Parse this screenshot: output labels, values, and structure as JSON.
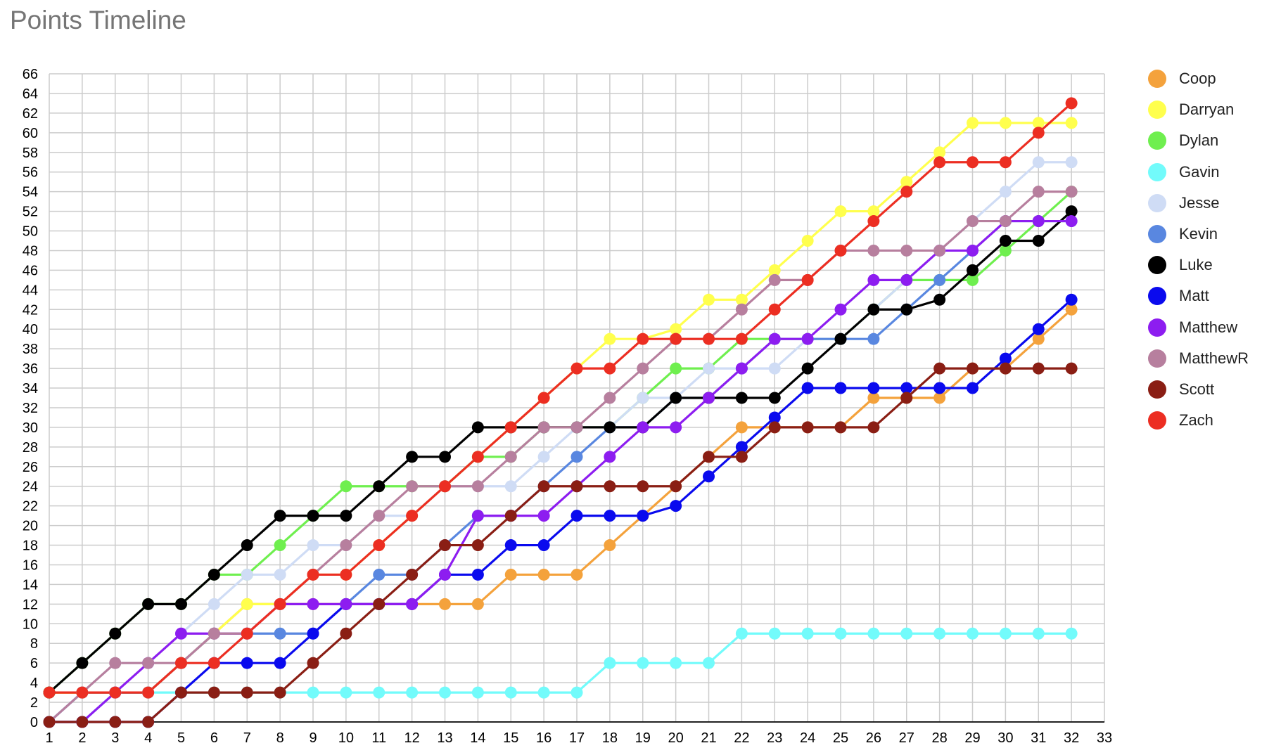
{
  "chart_data": {
    "type": "line",
    "title": "Points Timeline",
    "xlabel": "",
    "ylabel": "",
    "x": [
      1,
      2,
      3,
      4,
      5,
      6,
      7,
      8,
      9,
      10,
      11,
      12,
      13,
      14,
      15,
      16,
      17,
      18,
      19,
      20,
      21,
      22,
      23,
      24,
      25,
      26,
      27,
      28,
      29,
      30,
      31,
      32
    ],
    "xlim": [
      1,
      33
    ],
    "ylim": [
      0,
      66
    ],
    "x_ticks": [
      1,
      2,
      3,
      4,
      5,
      6,
      7,
      8,
      9,
      10,
      11,
      12,
      13,
      14,
      15,
      16,
      17,
      18,
      19,
      20,
      21,
      22,
      23,
      24,
      25,
      26,
      27,
      28,
      29,
      30,
      31,
      32,
      33
    ],
    "y_ticks": [
      0,
      2,
      4,
      6,
      8,
      10,
      12,
      14,
      16,
      18,
      20,
      22,
      24,
      26,
      28,
      30,
      32,
      34,
      36,
      38,
      40,
      42,
      44,
      46,
      48,
      50,
      52,
      54,
      56,
      58,
      60,
      62,
      64,
      66
    ],
    "grid": true,
    "legend_position": "right",
    "series": [
      {
        "name": "Coop",
        "color": "#f4a23c",
        "values": [
          3,
          3,
          3,
          3,
          6,
          9,
          12,
          12,
          12,
          12,
          12,
          12,
          12,
          12,
          15,
          15,
          15,
          18,
          21,
          24,
          27,
          30,
          30,
          30,
          30,
          33,
          33,
          33,
          36,
          36,
          39,
          42
        ]
      },
      {
        "name": "Darryan",
        "color": "#ffff4d",
        "values": [
          3,
          3,
          3,
          3,
          6,
          9,
          12,
          12,
          15,
          15,
          18,
          21,
          24,
          27,
          30,
          33,
          36,
          39,
          39,
          40,
          43,
          43,
          46,
          49,
          52,
          52,
          55,
          58,
          61,
          61,
          61,
          61
        ]
      },
      {
        "name": "Dylan",
        "color": "#6fef4f",
        "values": [
          3,
          6,
          9,
          12,
          12,
          15,
          15,
          18,
          21,
          24,
          24,
          24,
          24,
          27,
          27,
          30,
          30,
          30,
          33,
          36,
          36,
          39,
          39,
          39,
          39,
          42,
          45,
          45,
          45,
          48,
          51,
          54
        ]
      },
      {
        "name": "Gavin",
        "color": "#72fbfb",
        "values": [
          0,
          0,
          3,
          3,
          3,
          3,
          3,
          3,
          3,
          3,
          3,
          3,
          3,
          3,
          3,
          3,
          3,
          6,
          6,
          6,
          6,
          9,
          9,
          9,
          9,
          9,
          9,
          9,
          9,
          9,
          9,
          9
        ]
      },
      {
        "name": "Jesse",
        "color": "#cfdcf5",
        "values": [
          0,
          3,
          6,
          6,
          9,
          12,
          15,
          15,
          18,
          18,
          21,
          21,
          24,
          24,
          24,
          27,
          30,
          30,
          33,
          33,
          36,
          36,
          36,
          39,
          39,
          42,
          45,
          48,
          51,
          54,
          57,
          57
        ]
      },
      {
        "name": "Kevin",
        "color": "#5987e0",
        "values": [
          0,
          3,
          3,
          3,
          6,
          9,
          9,
          9,
          9,
          12,
          15,
          15,
          18,
          21,
          21,
          24,
          27,
          30,
          30,
          33,
          33,
          36,
          39,
          39,
          39,
          39,
          42,
          45,
          48,
          51,
          51,
          51
        ]
      },
      {
        "name": "Luke",
        "color": "#000000",
        "values": [
          3,
          6,
          9,
          12,
          12,
          15,
          18,
          21,
          21,
          21,
          24,
          27,
          27,
          30,
          30,
          30,
          30,
          30,
          30,
          33,
          33,
          33,
          33,
          36,
          39,
          42,
          42,
          43,
          46,
          49,
          49,
          52
        ]
      },
      {
        "name": "Matt",
        "color": "#0a0aee",
        "values": [
          0,
          0,
          0,
          0,
          3,
          6,
          6,
          6,
          9,
          12,
          12,
          12,
          15,
          15,
          18,
          18,
          21,
          21,
          21,
          22,
          25,
          28,
          31,
          34,
          34,
          34,
          34,
          34,
          34,
          37,
          40,
          43
        ]
      },
      {
        "name": "Matthew",
        "color": "#8d1df0",
        "values": [
          0,
          0,
          3,
          6,
          9,
          9,
          9,
          12,
          12,
          12,
          12,
          12,
          15,
          21,
          21,
          21,
          24,
          27,
          30,
          30,
          33,
          36,
          39,
          39,
          42,
          45,
          45,
          48,
          48,
          51,
          51,
          51
        ]
      },
      {
        "name": "MatthewR",
        "color": "#b77f9e",
        "values": [
          0,
          3,
          6,
          6,
          6,
          9,
          9,
          12,
          15,
          18,
          21,
          24,
          24,
          24,
          27,
          30,
          30,
          33,
          36,
          39,
          39,
          42,
          45,
          45,
          48,
          48,
          48,
          48,
          51,
          51,
          54,
          54
        ]
      },
      {
        "name": "Scott",
        "color": "#8a1e14",
        "values": [
          0,
          0,
          0,
          0,
          3,
          3,
          3,
          3,
          6,
          9,
          12,
          15,
          18,
          18,
          21,
          24,
          24,
          24,
          24,
          24,
          27,
          27,
          30,
          30,
          30,
          30,
          33,
          36,
          36,
          36,
          36,
          36
        ]
      },
      {
        "name": "Zach",
        "color": "#ec2e22",
        "values": [
          3,
          3,
          3,
          3,
          6,
          6,
          9,
          12,
          15,
          15,
          18,
          21,
          24,
          27,
          30,
          33,
          36,
          36,
          39,
          39,
          39,
          39,
          42,
          45,
          48,
          51,
          54,
          57,
          57,
          57,
          60,
          63
        ]
      }
    ]
  }
}
